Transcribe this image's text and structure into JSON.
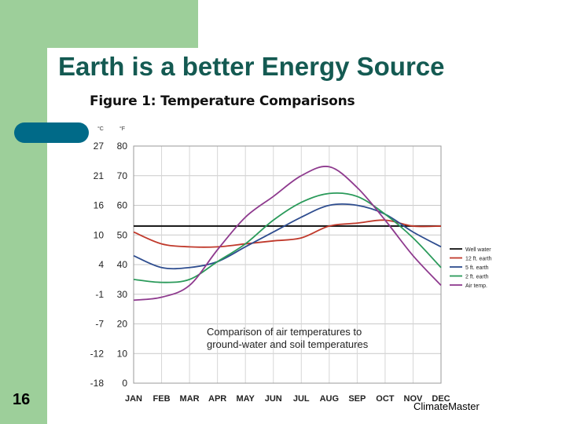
{
  "slide": {
    "title": "Earth is a better Energy Source",
    "number": "16",
    "credit": "ClimateMaster"
  },
  "chart_data": {
    "type": "line",
    "title": "Figure 1: Temperature Comparisons",
    "annotation": [
      "Comparison of air temperatures to",
      "ground-water and soil temperatures"
    ],
    "categories": [
      "Jan",
      "Feb",
      "Mar",
      "Apr",
      "May",
      "Jun",
      "Jul",
      "Aug",
      "Sep",
      "Oct",
      "Nov",
      "Dec"
    ],
    "y_unit_c": "°C",
    "y_unit_f": "°F",
    "ylim_f": [
      0,
      80
    ],
    "ticks_f": [
      0,
      10,
      20,
      30,
      40,
      50,
      60,
      70,
      80
    ],
    "ticks_c": [
      "-18",
      "-12",
      "-7",
      "-1",
      "4",
      "10",
      "16",
      "21",
      "27"
    ],
    "legend_position": "right",
    "series": [
      {
        "name": "Well water",
        "color": "#111111",
        "values": [
          53,
          53,
          53,
          53,
          53,
          53,
          53,
          53,
          53,
          53,
          53,
          53
        ]
      },
      {
        "name": "12 ft. earth",
        "color": "#c0392b",
        "values": [
          51,
          47,
          46,
          46,
          47,
          48,
          49,
          53,
          54,
          55,
          53,
          53
        ]
      },
      {
        "name": "5 ft. earth",
        "color": "#2e4d8f",
        "values": [
          43,
          39,
          39,
          41,
          46,
          51,
          56,
          60,
          60,
          57,
          51,
          46
        ]
      },
      {
        "name": "2 ft. earth",
        "color": "#2a9a5a",
        "values": [
          35,
          34,
          35,
          41,
          47,
          55,
          61,
          64,
          63,
          57,
          49,
          39
        ]
      },
      {
        "name": "Air temp.",
        "color": "#8e3a8e",
        "values": [
          28,
          29,
          33,
          45,
          56,
          63,
          70,
          73,
          66,
          55,
          43,
          33
        ]
      }
    ]
  }
}
